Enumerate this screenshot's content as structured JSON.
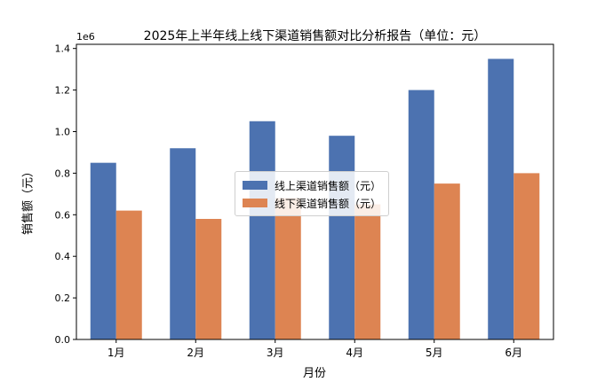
{
  "chart_data": {
    "type": "bar",
    "title": "2025年上半年线上线下渠道销售额对比分析报告（单位：元）",
    "xlabel": "月份",
    "ylabel": "销售额（元）",
    "y_offset_label": "1e6",
    "categories": [
      "1月",
      "2月",
      "3月",
      "4月",
      "5月",
      "6月"
    ],
    "series": [
      {
        "name": "线上渠道销售额（元）",
        "color": "#4c72b0",
        "values": [
          850000,
          920000,
          1050000,
          980000,
          1200000,
          1350000
        ]
      },
      {
        "name": "线下渠道销售额（元）",
        "color": "#dd8452",
        "values": [
          620000,
          580000,
          680000,
          650000,
          750000,
          800000
        ]
      }
    ],
    "ylim": [
      0,
      1420000
    ],
    "yticks": [
      0,
      200000,
      400000,
      600000,
      800000,
      1000000,
      1200000,
      1400000
    ],
    "ytick_labels": [
      "0.0",
      "0.2",
      "0.4",
      "0.6",
      "0.8",
      "1.0",
      "1.2",
      "1.4"
    ],
    "grid": false,
    "legend_position": "center"
  }
}
